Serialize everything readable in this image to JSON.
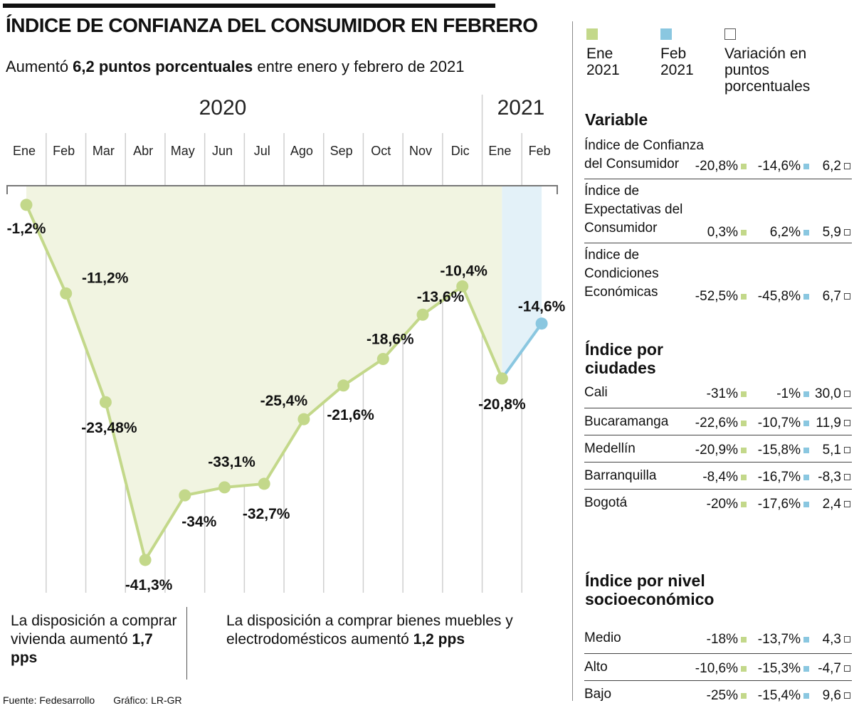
{
  "header": {
    "title": "ÍNDICE DE CONFIANZA DEL CONSUMIDOR EN FEBRERO",
    "subtitle_pre": "Aumentó ",
    "subtitle_bold": "6,2 puntos porcentuales",
    "subtitle_post": " entre enero y febrero de 2021"
  },
  "chart_data": {
    "type": "line",
    "title": "Índice de Confianza del Consumidor",
    "year_labels": [
      "2020",
      "2021"
    ],
    "categories": [
      "Ene",
      "Feb",
      "Mar",
      "Abr",
      "May",
      "Jun",
      "Jul",
      "Ago",
      "Sep",
      "Oct",
      "Nov",
      "Dic",
      "Ene",
      "Feb"
    ],
    "values": [
      -1.2,
      -11.2,
      -23.48,
      -41.3,
      -34,
      -33.1,
      -32.7,
      -25.4,
      -21.6,
      -18.6,
      -13.6,
      -10.4,
      -20.8,
      -14.6
    ],
    "value_labels": [
      "-1,2%",
      "-11,2%",
      "-23,48%",
      "-41,3%",
      "-34%",
      "-33,1%",
      "-32,7%",
      "-25,4%",
      "",
      "-18,6%",
      "-13,6%",
      "-10,4%",
      "-20,8%",
      "-14,6%"
    ],
    "annotation": "-21,6%",
    "ylim": [
      -45,
      0
    ],
    "colors": {
      "line_2020": "#c3d88a",
      "line_2021": "#8ac7e0",
      "area_2020": "#f1f4e1",
      "area_2021": "#e3f1f8"
    }
  },
  "notes": {
    "housing_pre": "La disposición a comprar vivienda aumentó ",
    "housing_bold": "1,7 pps",
    "goods_pre": "La disposición a comprar bienes muebles y electrodomésticos aumentó ",
    "goods_bold": "1,2 pps"
  },
  "footer": {
    "source": "Fuente: Fedesarrollo",
    "graphic": "Gráfico: LR-GR"
  },
  "legend": {
    "jan": "Ene 2021",
    "feb": "Feb 2021",
    "var": "Variación en puntos porcentuales"
  },
  "table": {
    "variable_header": "Variable",
    "variables": [
      {
        "name": "Índice de Confianza del Consumidor",
        "ene": "-20,8%",
        "feb": "-14,6%",
        "var": "6,2"
      },
      {
        "name": "Índice de Expectativas del Consumidor",
        "ene": "0,3%",
        "feb": "6,2%",
        "var": "5,9"
      },
      {
        "name": "Índice de Condiciones Económicas",
        "ene": "-52,5%",
        "feb": "-45,8%",
        "var": "6,7"
      }
    ],
    "cities_header": "Índice por ciudades",
    "cities": [
      {
        "name": "Cali",
        "ene": "-31%",
        "feb": "-1%",
        "var": "30,0"
      },
      {
        "name": "Bucaramanga",
        "ene": "-22,6%",
        "feb": "-10,7%",
        "var": "11,9"
      },
      {
        "name": "Medellín",
        "ene": "-20,9%",
        "feb": "-15,8%",
        "var": "5,1"
      },
      {
        "name": "Barranquilla",
        "ene": "-8,4%",
        "feb": "-16,7%",
        "var": "-8,3"
      },
      {
        "name": "Bogotá",
        "ene": "-20%",
        "feb": "-17,6%",
        "var": "2,4"
      }
    ],
    "socio_header": "Índice por nivel socioeconómico",
    "socio": [
      {
        "name": "Medio",
        "ene": "-18%",
        "feb": "-13,7%",
        "var": "4,3"
      },
      {
        "name": "Alto",
        "ene": "-10,6%",
        "feb": "-15,3%",
        "var": "-4,7"
      },
      {
        "name": "Bajo",
        "ene": "-25%",
        "feb": "-15,4%",
        "var": "9,6"
      }
    ]
  }
}
